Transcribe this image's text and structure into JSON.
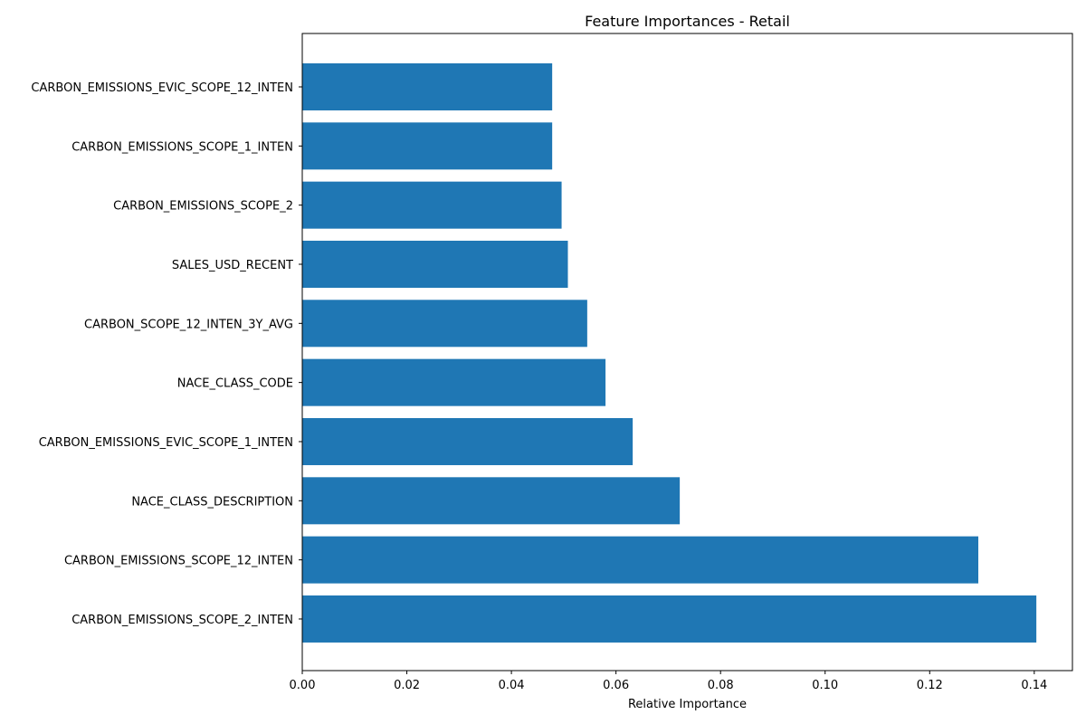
{
  "chart_data": {
    "type": "bar",
    "orientation": "horizontal",
    "title": "Feature Importances - Retail",
    "xlabel": "Relative Importance",
    "ylabel": "",
    "xlim": [
      0,
      0.1473
    ],
    "xticks": [
      0.0,
      0.02,
      0.04,
      0.06,
      0.08,
      0.1,
      0.12,
      0.14
    ],
    "xtick_labels": [
      "0.00",
      "0.02",
      "0.04",
      "0.06",
      "0.08",
      "0.10",
      "0.12",
      "0.14"
    ],
    "grid": false,
    "bar_color": "#1f77b4",
    "categories": [
      "CARBON_EMISSIONS_EVIC_SCOPE_12_INTEN",
      "CARBON_EMISSIONS_SCOPE_1_INTEN",
      "CARBON_EMISSIONS_SCOPE_2",
      "SALES_USD_RECENT",
      "CARBON_SCOPE_12_INTEN_3Y_AVG",
      "NACE_CLASS_CODE",
      "CARBON_EMISSIONS_EVIC_SCOPE_1_INTEN",
      "NACE_CLASS_DESCRIPTION",
      "CARBON_EMISSIONS_SCOPE_12_INTEN",
      "CARBON_EMISSIONS_SCOPE_2_INTEN"
    ],
    "values": [
      0.0478,
      0.0478,
      0.0496,
      0.0508,
      0.0545,
      0.058,
      0.0632,
      0.0722,
      0.1293,
      0.1404
    ]
  }
}
